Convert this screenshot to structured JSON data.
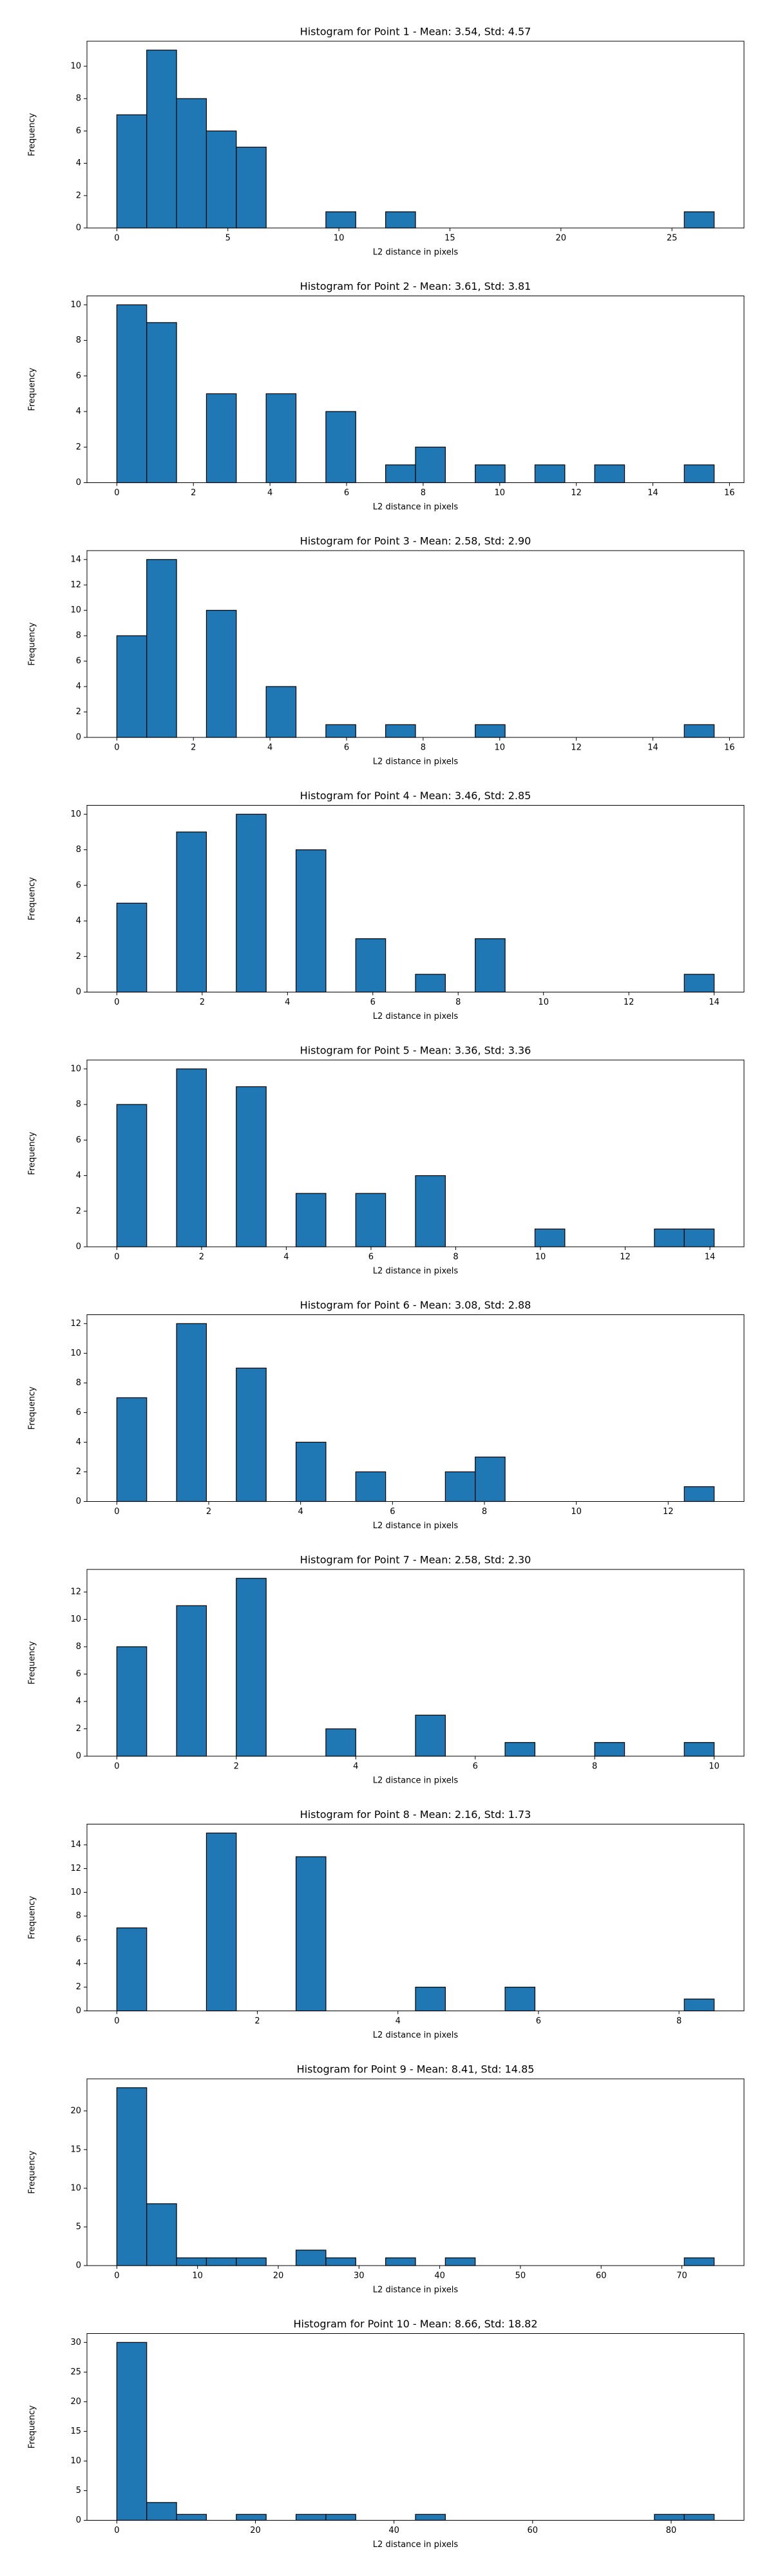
{
  "chart_data": [
    {
      "type": "histogram",
      "title": "Histogram for Point 1 - Mean: 3.54, Std: 4.57",
      "xlabel": "L2 distance in pixels",
      "ylabel": "Frequency",
      "color": "#1f77b4",
      "edgecolor": "#000000",
      "bins": [
        0,
        1.345,
        2.69,
        4.035,
        5.38,
        6.725,
        8.07,
        9.415,
        10.76,
        12.105,
        13.45,
        14.795,
        16.14,
        17.485,
        18.83,
        20.175,
        21.52,
        22.865,
        24.21,
        25.555,
        26.9
      ],
      "values": [
        7,
        11,
        8,
        6,
        5,
        0,
        0,
        1,
        0,
        1,
        0,
        0,
        0,
        0,
        0,
        0,
        0,
        0,
        0,
        1
      ],
      "xlim": [
        -1.345,
        28.245
      ],
      "ylim": [
        0,
        11.55
      ],
      "xticks": [
        0,
        5,
        10,
        15,
        20,
        25
      ],
      "yticks": [
        0,
        2,
        4,
        6,
        8,
        10
      ]
    },
    {
      "type": "histogram",
      "title": "Histogram for Point 2 - Mean: 3.61, Std: 3.81",
      "xlabel": "L2 distance in pixels",
      "ylabel": "Frequency",
      "color": "#1f77b4",
      "edgecolor": "#000000",
      "bins": [
        0,
        0.78,
        1.56,
        2.34,
        3.12,
        3.9,
        4.68,
        5.46,
        6.24,
        7.02,
        7.8,
        8.58,
        9.36,
        10.14,
        10.92,
        11.7,
        12.48,
        13.26,
        14.04,
        14.82,
        15.6
      ],
      "values": [
        10,
        9,
        0,
        5,
        0,
        5,
        0,
        4,
        0,
        1,
        2,
        0,
        1,
        0,
        1,
        0,
        1,
        0,
        0,
        1
      ],
      "xlim": [
        -0.78,
        16.38
      ],
      "ylim": [
        0,
        10.5
      ],
      "xticks": [
        0,
        2,
        4,
        6,
        8,
        10,
        12,
        14,
        16
      ],
      "yticks": [
        0,
        2,
        4,
        6,
        8,
        10
      ]
    },
    {
      "type": "histogram",
      "title": "Histogram for Point 3 - Mean: 2.58, Std: 2.90",
      "xlabel": "L2 distance in pixels",
      "ylabel": "Frequency",
      "color": "#1f77b4",
      "edgecolor": "#000000",
      "bins": [
        0,
        0.78,
        1.56,
        2.34,
        3.12,
        3.9,
        4.68,
        5.46,
        6.24,
        7.02,
        7.8,
        8.58,
        9.36,
        10.14,
        10.92,
        11.7,
        12.48,
        13.26,
        14.04,
        14.82,
        15.6
      ],
      "values": [
        8,
        14,
        0,
        10,
        0,
        4,
        0,
        1,
        0,
        1,
        0,
        0,
        1,
        0,
        0,
        0,
        0,
        0,
        0,
        1
      ],
      "xlim": [
        -0.78,
        16.38
      ],
      "ylim": [
        0,
        14.7
      ],
      "xticks": [
        0,
        2,
        4,
        6,
        8,
        10,
        12,
        14,
        16
      ],
      "yticks": [
        0,
        2,
        4,
        6,
        8,
        10,
        12,
        14
      ]
    },
    {
      "type": "histogram",
      "title": "Histogram for Point 4 - Mean: 3.46, Std: 2.85",
      "xlabel": "L2 distance in pixels",
      "ylabel": "Frequency",
      "color": "#1f77b4",
      "edgecolor": "#000000",
      "bins": [
        0,
        0.7,
        1.4,
        2.1,
        2.8,
        3.5,
        4.2,
        4.9,
        5.6,
        6.3,
        7,
        7.7,
        8.4,
        9.1,
        9.8,
        10.5,
        11.2,
        11.9,
        12.6,
        13.3,
        14
      ],
      "values": [
        5,
        0,
        9,
        0,
        10,
        0,
        8,
        0,
        3,
        0,
        1,
        0,
        3,
        0,
        0,
        0,
        0,
        0,
        0,
        1
      ],
      "xlim": [
        -0.7,
        14.7
      ],
      "ylim": [
        0,
        10.5
      ],
      "xticks": [
        0,
        2,
        4,
        6,
        8,
        10,
        12,
        14
      ],
      "yticks": [
        0,
        2,
        4,
        6,
        8,
        10
      ]
    },
    {
      "type": "histogram",
      "title": "Histogram for Point 5 - Mean: 3.36, Std: 3.36",
      "xlabel": "L2 distance in pixels",
      "ylabel": "Frequency",
      "color": "#1f77b4",
      "edgecolor": "#000000",
      "bins": [
        0,
        0.705,
        1.41,
        2.115,
        2.82,
        3.525,
        4.23,
        4.935,
        5.64,
        6.345,
        7.05,
        7.755,
        8.46,
        9.165,
        9.87,
        10.575,
        11.28,
        11.985,
        12.69,
        13.395,
        14.1
      ],
      "values": [
        8,
        0,
        10,
        0,
        9,
        0,
        3,
        0,
        3,
        0,
        4,
        0,
        0,
        0,
        1,
        0,
        0,
        0,
        1,
        1
      ],
      "xlim": [
        -0.705,
        14.805
      ],
      "ylim": [
        0,
        10.5
      ],
      "xticks": [
        0,
        2,
        4,
        6,
        8,
        10,
        12,
        14
      ],
      "yticks": [
        0,
        2,
        4,
        6,
        8,
        10
      ]
    },
    {
      "type": "histogram",
      "title": "Histogram for Point 6 - Mean: 3.08, Std: 2.88",
      "xlabel": "L2 distance in pixels",
      "ylabel": "Frequency",
      "color": "#1f77b4",
      "edgecolor": "#000000",
      "bins": [
        0,
        0.65,
        1.3,
        1.95,
        2.6,
        3.25,
        3.9,
        4.55,
        5.2,
        5.85,
        6.5,
        7.15,
        7.8,
        8.45,
        9.1,
        9.75,
        10.4,
        11.05,
        11.7,
        12.35,
        13
      ],
      "values": [
        7,
        0,
        12,
        0,
        9,
        0,
        4,
        0,
        2,
        0,
        0,
        2,
        3,
        0,
        0,
        0,
        0,
        0,
        0,
        1
      ],
      "xlim": [
        -0.65,
        13.65
      ],
      "ylim": [
        0,
        12.6
      ],
      "xticks": [
        0,
        2,
        4,
        6,
        8,
        10,
        12
      ],
      "yticks": [
        0,
        2,
        4,
        6,
        8,
        10,
        12
      ]
    },
    {
      "type": "histogram",
      "title": "Histogram for Point 7 - Mean: 2.58, Std: 2.30",
      "xlabel": "L2 distance in pixels",
      "ylabel": "Frequency",
      "color": "#1f77b4",
      "edgecolor": "#000000",
      "bins": [
        0,
        0.5,
        1,
        1.5,
        2,
        2.5,
        3,
        3.5,
        4,
        4.5,
        5,
        5.5,
        6,
        6.5,
        7,
        7.5,
        8,
        8.5,
        9,
        9.5,
        10
      ],
      "values": [
        8,
        0,
        11,
        0,
        13,
        0,
        0,
        2,
        0,
        0,
        3,
        0,
        0,
        1,
        0,
        0,
        1,
        0,
        0,
        1
      ],
      "xlim": [
        -0.5,
        10.5
      ],
      "ylim": [
        0,
        13.65
      ],
      "xticks": [
        0,
        2,
        4,
        6,
        8,
        10
      ],
      "yticks": [
        0,
        2,
        4,
        6,
        8,
        10,
        12
      ]
    },
    {
      "type": "histogram",
      "title": "Histogram for Point 8 - Mean: 2.16, Std: 1.73",
      "xlabel": "L2 distance in pixels",
      "ylabel": "Frequency",
      "color": "#1f77b4",
      "edgecolor": "#000000",
      "bins": [
        0,
        0.425,
        0.85,
        1.275,
        1.7,
        2.125,
        2.55,
        2.975,
        3.4,
        3.825,
        4.25,
        4.675,
        5.1,
        5.525,
        5.95,
        6.375,
        6.8,
        7.225,
        7.65,
        8.075,
        8.5
      ],
      "values": [
        7,
        0,
        0,
        15,
        0,
        0,
        13,
        0,
        0,
        0,
        2,
        0,
        0,
        2,
        0,
        0,
        0,
        0,
        0,
        1
      ],
      "xlim": [
        -0.425,
        8.925
      ],
      "ylim": [
        0,
        15.75
      ],
      "xticks": [
        0,
        2,
        4,
        6,
        8
      ],
      "yticks": [
        0,
        2,
        4,
        6,
        8,
        10,
        12,
        14
      ]
    },
    {
      "type": "histogram",
      "title": "Histogram for Point 9 - Mean: 8.41, Std: 14.85",
      "xlabel": "L2 distance in pixels",
      "ylabel": "Frequency",
      "color": "#1f77b4",
      "edgecolor": "#000000",
      "bins": [
        0,
        3.7,
        7.4,
        11.1,
        14.8,
        18.5,
        22.2,
        25.9,
        29.6,
        33.3,
        37,
        40.7,
        44.4,
        48.1,
        51.8,
        55.5,
        59.2,
        62.9,
        66.6,
        70.3,
        74
      ],
      "values": [
        23,
        8,
        1,
        1,
        1,
        0,
        2,
        1,
        0,
        1,
        0,
        1,
        0,
        0,
        0,
        0,
        0,
        0,
        0,
        1
      ],
      "xlim": [
        -3.7,
        77.7
      ],
      "ylim": [
        0,
        24.15
      ],
      "xticks": [
        0,
        10,
        20,
        30,
        40,
        50,
        60,
        70
      ],
      "yticks": [
        0,
        5,
        10,
        15,
        20
      ]
    },
    {
      "type": "histogram",
      "title": "Histogram for Point 10 - Mean: 8.66, Std: 18.82",
      "xlabel": "L2 distance in pixels",
      "ylabel": "Frequency",
      "color": "#1f77b4",
      "edgecolor": "#000000",
      "bins": [
        0,
        4.31,
        8.62,
        12.93,
        17.24,
        21.55,
        25.86,
        30.17,
        34.48,
        38.79,
        43.1,
        47.41,
        51.72,
        56.03,
        60.34,
        64.65,
        68.96,
        73.27,
        77.58,
        81.89,
        86.2
      ],
      "values": [
        30,
        3,
        1,
        0,
        1,
        0,
        1,
        1,
        0,
        0,
        1,
        0,
        0,
        0,
        0,
        0,
        0,
        0,
        1,
        1
      ],
      "xlim": [
        -4.31,
        90.51
      ],
      "ylim": [
        0,
        31.5
      ],
      "xticks": [
        0,
        20,
        40,
        60,
        80
      ],
      "yticks": [
        0,
        5,
        10,
        15,
        20,
        25,
        30
      ]
    }
  ]
}
